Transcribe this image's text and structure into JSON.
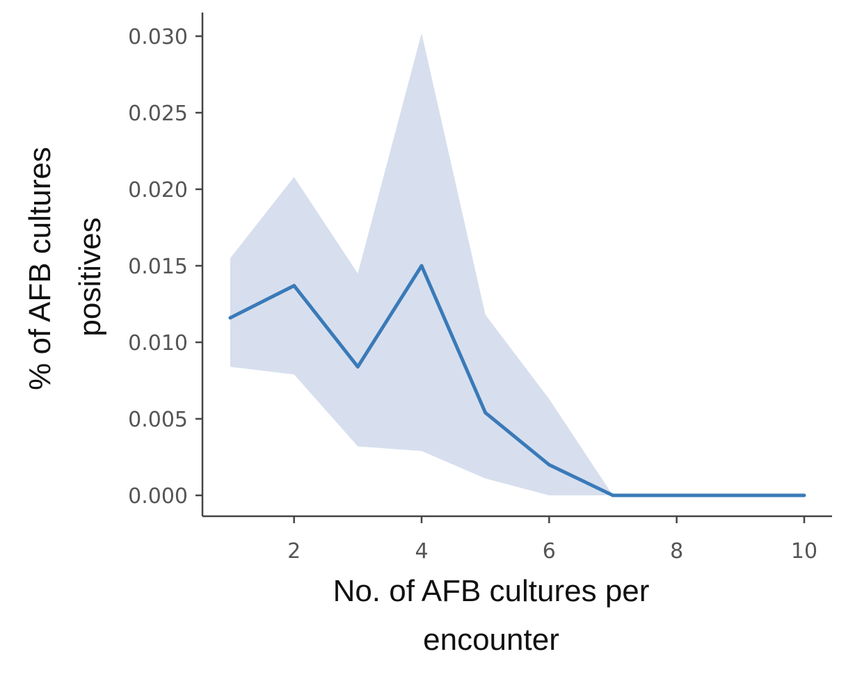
{
  "chart_data": {
    "type": "line",
    "title": "",
    "xlabel_lines": [
      "No. of AFB cultures per",
      "encounter"
    ],
    "ylabel_lines": [
      "% of AFB cultures",
      "positives"
    ],
    "xlim": [
      1,
      10
    ],
    "ylim": [
      0,
      0.03
    ],
    "x_ticks": [
      2,
      4,
      6,
      8,
      10
    ],
    "y_ticks": [
      0.0,
      0.005,
      0.01,
      0.015,
      0.02,
      0.025,
      0.03
    ],
    "y_tick_labels": [
      "0.000",
      "0.005",
      "0.010",
      "0.015",
      "0.020",
      "0.025",
      "0.030"
    ],
    "grid": false,
    "series": [
      {
        "x": [
          1,
          2,
          3,
          4,
          5,
          6,
          7,
          8,
          9,
          10
        ],
        "y": [
          0.0116,
          0.0137,
          0.0084,
          0.015,
          0.0054,
          0.002,
          0.0,
          0.0,
          0.0,
          0.0
        ],
        "ci_upper": [
          0.0155,
          0.0208,
          0.0145,
          0.0302,
          0.0118,
          0.0063,
          0.0,
          0.0,
          0.0,
          0.0
        ],
        "ci_lower": [
          0.0084,
          0.0079,
          0.0032,
          0.0029,
          0.0011,
          0.0,
          0.0,
          0.0,
          0.0,
          0.0
        ],
        "color": "#3a7ab8",
        "band_color": "#d7dfee"
      }
    ]
  }
}
